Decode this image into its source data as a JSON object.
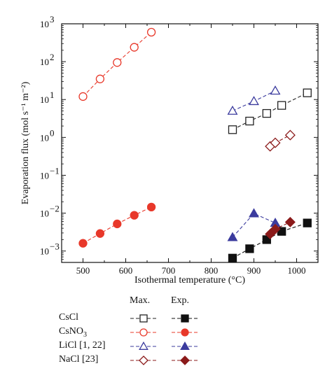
{
  "chart_data": {
    "type": "scatter",
    "xlabel": "Isothermal temperature (°C)",
    "ylabel": "Evaporation flux (mol s⁻¹ m⁻²)",
    "xlim": [
      450,
      1050
    ],
    "ylim": [
      0.0005,
      1000
    ],
    "yscale": "log",
    "xticks": [
      500,
      600,
      700,
      800,
      900,
      1000
    ],
    "yticks": [
      0.001,
      0.01,
      0.1,
      1,
      10,
      100,
      1000
    ],
    "ytick_labels": [
      [
        "10",
        "−3"
      ],
      [
        "10",
        "−2"
      ],
      [
        "10",
        "−1"
      ],
      [
        "10",
        "0"
      ],
      [
        "10",
        "1"
      ],
      [
        "10",
        "2"
      ],
      [
        "10",
        "3"
      ]
    ],
    "legend_header": {
      "max": "Max.",
      "exp": "Exp."
    },
    "legend_position": "bottom",
    "series": [
      {
        "name": "CsCl",
        "kind": "max",
        "marker": "square",
        "filled": false,
        "color": "#222222",
        "x": [
          850,
          890,
          930,
          965,
          1025
        ],
        "y": [
          1.6,
          2.7,
          4.3,
          7.0,
          15.0
        ]
      },
      {
        "name": "CsCl",
        "kind": "exp",
        "marker": "square",
        "filled": true,
        "color": "#111111",
        "x": [
          850,
          890,
          930,
          965,
          1025
        ],
        "y": [
          0.00065,
          0.00115,
          0.002,
          0.0033,
          0.0055
        ]
      },
      {
        "name": "CsNO3",
        "kind": "max",
        "marker": "circle",
        "filled": false,
        "color": "#e8382a",
        "x": [
          500,
          540,
          580,
          620,
          660
        ],
        "y": [
          12,
          35,
          95,
          240,
          600
        ]
      },
      {
        "name": "CsNO3",
        "kind": "exp",
        "marker": "circle",
        "filled": true,
        "color": "#e8382a",
        "x": [
          500,
          540,
          580,
          620,
          660
        ],
        "y": [
          0.0016,
          0.0029,
          0.0052,
          0.0088,
          0.0145
        ]
      },
      {
        "name": "LiCl [1, 22]",
        "kind": "max",
        "marker": "triangle",
        "filled": false,
        "color": "#3b3b9e",
        "x": [
          850,
          900,
          950
        ],
        "y": [
          5.0,
          9.0,
          17.0
        ]
      },
      {
        "name": "LiCl [1, 22]",
        "kind": "exp",
        "marker": "triangle",
        "filled": true,
        "color": "#3b3b9e",
        "x": [
          850,
          900,
          950
        ],
        "y": [
          0.0023,
          0.0098,
          0.0055
        ]
      },
      {
        "name": "NaCl [23]",
        "kind": "max",
        "marker": "diamond",
        "filled": false,
        "color": "#8b1a1a",
        "x": [
          938,
          950,
          985
        ],
        "y": [
          0.58,
          0.72,
          1.15
        ]
      },
      {
        "name": "NaCl [23]",
        "kind": "exp",
        "marker": "diamond",
        "filled": true,
        "color": "#8b1a1a",
        "x": [
          938,
          950,
          985
        ],
        "y": [
          0.0028,
          0.0038,
          0.0058
        ]
      }
    ]
  },
  "legend": [
    {
      "name": "CsCl",
      "color_max": "#222222",
      "color_exp": "#111111",
      "marker": "square"
    },
    {
      "name": "CsNO",
      "sub": "3",
      "color_max": "#e8382a",
      "color_exp": "#e8382a",
      "marker": "circle"
    },
    {
      "name": "LiCl [1, 22]",
      "color_max": "#3b3b9e",
      "color_exp": "#3b3b9e",
      "marker": "triangle"
    },
    {
      "name": "NaCl [23]",
      "color_max": "#8b1a1a",
      "color_exp": "#8b1a1a",
      "marker": "diamond"
    }
  ]
}
